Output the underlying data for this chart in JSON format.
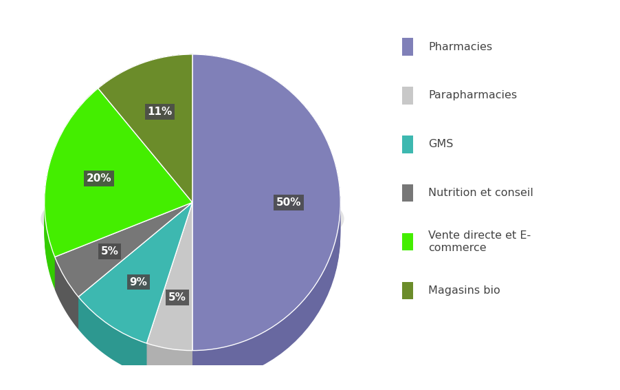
{
  "labels": [
    "Pharmacies",
    "Parapharmacies",
    "GMS",
    "Nutrition et conseil",
    "Vente directe et E-\ncommerce",
    "Magasins bio"
  ],
  "legend_labels": [
    "Pharmacies",
    "Parapharmacies",
    "GMS",
    "Nutrition et conseil",
    "Vente directe et E-\ncommerce",
    "Magasins bio"
  ],
  "values": [
    50,
    5,
    9,
    5,
    20,
    11
  ],
  "pct_labels": [
    "50%",
    "5%",
    "9%",
    "5%",
    "20%",
    "11%"
  ],
  "colors": [
    "#8080b8",
    "#c8c8c8",
    "#3db8b0",
    "#777777",
    "#44ee00",
    "#6b8c2a"
  ],
  "shadow_color": "#2d2d3d",
  "edge_colors": [
    "#6868a0",
    "#b0b0b0",
    "#2d9890",
    "#595959",
    "#33cc00",
    "#556e20"
  ],
  "label_bg_color": "#4a4a4a",
  "label_text_color": "#ffffff",
  "startangle": 90,
  "figsize": [
    9.03,
    5.67
  ],
  "dpi": 100
}
